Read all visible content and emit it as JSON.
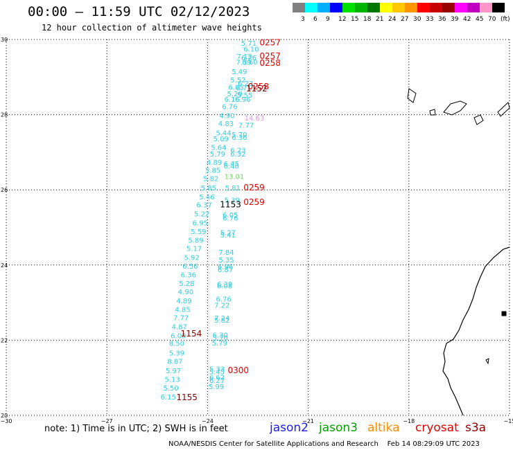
{
  "header": {
    "title": "00:00 – 11:59 UTC 02/12/2023",
    "subtitle": "12 hour collection of altimeter wave heights"
  },
  "color_scale": {
    "labels": [
      "3",
      "6",
      "9",
      "12",
      "15",
      "18",
      "21",
      "24",
      "27",
      "30",
      "33",
      "36",
      "39",
      "42",
      "45",
      "70",
      "(ft)"
    ],
    "colors": [
      "#808080",
      "#00ffff",
      "#00b0ff",
      "#0000ff",
      "#00e000",
      "#00b400",
      "#007800",
      "#ffff00",
      "#ffc800",
      "#ff9600",
      "#ff0000",
      "#c80000",
      "#960000",
      "#ff00ff",
      "#c000c0",
      "#ff96c8",
      "#000000"
    ]
  },
  "axes": {
    "y_ticks": [
      "30",
      "28",
      "26",
      "24",
      "22",
      "20"
    ],
    "x_ticks": [
      "−30",
      "−27",
      "−24",
      "−21",
      "−18",
      "−15"
    ]
  },
  "map": {
    "lon_range": [
      -30,
      -15
    ],
    "lat_range": [
      20,
      30
    ],
    "grid": "dotted",
    "observations": [
      {
        "label": "5.71",
        "lon": -23.0,
        "lat": 29.91,
        "color": "#2ecde0"
      },
      {
        "label": "6.10",
        "lon": -22.93,
        "lat": 29.75,
        "color": "#2ecde0"
      },
      {
        "label": "7.12",
        "lon": -23.13,
        "lat": 29.56,
        "color": "#2ecde0"
      },
      {
        "label": "6.26",
        "lon": -23.0,
        "lat": 29.52,
        "color": "#2ecde0"
      },
      {
        "label": "7.39",
        "lon": -23.15,
        "lat": 29.4,
        "color": "#2ecde0"
      },
      {
        "label": "6.60",
        "lon": -22.97,
        "lat": 29.41,
        "color": "#2ecde0"
      },
      {
        "label": "5.49",
        "lon": -23.28,
        "lat": 29.15,
        "color": "#2ecde0"
      },
      {
        "label": "5.52",
        "lon": -23.32,
        "lat": 28.93,
        "color": "#2ecde0"
      },
      {
        "label": "6.23",
        "lon": -23.1,
        "lat": 28.84,
        "color": "#2ecde0"
      },
      {
        "label": "6.05",
        "lon": -23.38,
        "lat": 28.74,
        "color": "#2ecde0"
      },
      {
        "label": "6.71",
        "lon": -23.15,
        "lat": 28.72,
        "color": "#2ecde0"
      },
      {
        "label": "5.29",
        "lon": -23.42,
        "lat": 28.56,
        "color": "#2ecde0"
      },
      {
        "label": "5.55",
        "lon": -23.12,
        "lat": 28.53,
        "color": "#2ecde0"
      },
      {
        "label": "6.16",
        "lon": -23.5,
        "lat": 28.42,
        "color": "#2ecde0"
      },
      {
        "label": "6.96",
        "lon": -23.18,
        "lat": 28.42,
        "color": "#2ecde0"
      },
      {
        "label": "6.76",
        "lon": -23.57,
        "lat": 28.22,
        "color": "#2ecde0"
      },
      {
        "label": "4.90",
        "lon": -23.65,
        "lat": 27.98,
        "color": "#2ecde0"
      },
      {
        "label": "14.63",
        "lon": -22.9,
        "lat": 27.92,
        "color": "#e88ce8"
      },
      {
        "label": "4.83",
        "lon": -23.68,
        "lat": 27.77,
        "color": "#2ecde0"
      },
      {
        "label": "7.77",
        "lon": -23.08,
        "lat": 27.73,
        "color": "#2ecde0"
      },
      {
        "label": "5.44",
        "lon": -23.75,
        "lat": 27.52,
        "color": "#2ecde0"
      },
      {
        "label": "5.70",
        "lon": -23.28,
        "lat": 27.48,
        "color": "#2ecde0"
      },
      {
        "label": "5.09",
        "lon": -23.83,
        "lat": 27.37,
        "color": "#2ecde0"
      },
      {
        "label": "6.36",
        "lon": -23.28,
        "lat": 27.4,
        "color": "#2ecde0"
      },
      {
        "label": "5.64",
        "lon": -23.9,
        "lat": 27.14,
        "color": "#2ecde0"
      },
      {
        "label": "6.23",
        "lon": -23.32,
        "lat": 27.06,
        "color": "#2ecde0"
      },
      {
        "label": "5.79",
        "lon": -23.93,
        "lat": 26.96,
        "color": "#2ecde0"
      },
      {
        "label": "6.32",
        "lon": -23.32,
        "lat": 26.96,
        "color": "#2ecde0"
      },
      {
        "label": "4.89",
        "lon": -24.03,
        "lat": 26.74,
        "color": "#2ecde0"
      },
      {
        "label": "6.45",
        "lon": -23.52,
        "lat": 26.7,
        "color": "#2ecde0"
      },
      {
        "label": "6.40",
        "lon": -23.52,
        "lat": 26.64,
        "color": "#2ecde0"
      },
      {
        "label": "5.85",
        "lon": -24.07,
        "lat": 26.53,
        "color": "#2ecde0"
      },
      {
        "label": "13.01",
        "lon": -23.5,
        "lat": 26.36,
        "color": "#6cd45a"
      },
      {
        "label": "5.82",
        "lon": -24.13,
        "lat": 26.31,
        "color": "#2ecde0"
      },
      {
        "label": "5.85",
        "lon": -24.2,
        "lat": 26.06,
        "color": "#2ecde0"
      },
      {
        "label": "5.81",
        "lon": -23.48,
        "lat": 26.06,
        "color": "#2ecde0"
      },
      {
        "label": "5.46",
        "lon": -24.25,
        "lat": 25.82,
        "color": "#2ecde0"
      },
      {
        "label": "5.39",
        "lon": -23.5,
        "lat": 25.74,
        "color": "#2ecde0"
      },
      {
        "label": "6.37",
        "lon": -24.33,
        "lat": 25.61,
        "color": "#2ecde0"
      },
      {
        "label": "5.22",
        "lon": -24.4,
        "lat": 25.37,
        "color": "#2ecde0"
      },
      {
        "label": "6.05",
        "lon": -23.55,
        "lat": 25.34,
        "color": "#2ecde0"
      },
      {
        "label": "6.76",
        "lon": -23.55,
        "lat": 25.26,
        "color": "#2ecde0"
      },
      {
        "label": "6.95",
        "lon": -24.45,
        "lat": 25.13,
        "color": "#2ecde0"
      },
      {
        "label": "5.59",
        "lon": -24.5,
        "lat": 24.9,
        "color": "#2ecde0"
      },
      {
        "label": "5.27",
        "lon": -23.62,
        "lat": 24.87,
        "color": "#2ecde0"
      },
      {
        "label": "5.41",
        "lon": -23.62,
        "lat": 24.81,
        "color": "#2ecde0"
      },
      {
        "label": "5.89",
        "lon": -24.58,
        "lat": 24.67,
        "color": "#2ecde0"
      },
      {
        "label": "5.17",
        "lon": -24.63,
        "lat": 24.45,
        "color": "#2ecde0"
      },
      {
        "label": "7.84",
        "lon": -23.67,
        "lat": 24.35,
        "color": "#2ecde0"
      },
      {
        "label": "5.92",
        "lon": -24.7,
        "lat": 24.21,
        "color": "#2ecde0"
      },
      {
        "label": "5.35",
        "lon": -23.67,
        "lat": 24.14,
        "color": "#2ecde0"
      },
      {
        "label": "6.56",
        "lon": -24.75,
        "lat": 23.98,
        "color": "#2ecde0"
      },
      {
        "label": "6.96",
        "lon": -23.7,
        "lat": 23.97,
        "color": "#2ecde0"
      },
      {
        "label": "6.87",
        "lon": -23.7,
        "lat": 23.89,
        "color": "#2ecde0"
      },
      {
        "label": "6.36",
        "lon": -24.8,
        "lat": 23.75,
        "color": "#2ecde0"
      },
      {
        "label": "5.28",
        "lon": -24.85,
        "lat": 23.52,
        "color": "#2ecde0"
      },
      {
        "label": "6.39",
        "lon": -23.72,
        "lat": 23.5,
        "color": "#2ecde0"
      },
      {
        "label": "6.08",
        "lon": -23.72,
        "lat": 23.45,
        "color": "#2ecde0"
      },
      {
        "label": "4.90",
        "lon": -24.88,
        "lat": 23.3,
        "color": "#2ecde0"
      },
      {
        "label": "4.89",
        "lon": -24.93,
        "lat": 23.06,
        "color": "#2ecde0"
      },
      {
        "label": "6.76",
        "lon": -23.75,
        "lat": 23.1,
        "color": "#2ecde0"
      },
      {
        "label": "7.22",
        "lon": -23.8,
        "lat": 22.94,
        "color": "#2ecde0"
      },
      {
        "label": "4.85",
        "lon": -24.97,
        "lat": 22.83,
        "color": "#2ecde0"
      },
      {
        "label": "7.77",
        "lon": -25.02,
        "lat": 22.61,
        "color": "#2ecde0"
      },
      {
        "label": "7.24",
        "lon": -23.8,
        "lat": 22.6,
        "color": "#2ecde0"
      },
      {
        "label": "5.82",
        "lon": -23.8,
        "lat": 22.54,
        "color": "#2ecde0"
      },
      {
        "label": "4.87",
        "lon": -25.07,
        "lat": 22.37,
        "color": "#2ecde0"
      },
      {
        "label": "6.00",
        "lon": -25.1,
        "lat": 22.13,
        "color": "#2ecde0"
      },
      {
        "label": "6.30",
        "lon": -23.85,
        "lat": 22.15,
        "color": "#2ecde0"
      },
      {
        "label": "5.70",
        "lon": -23.85,
        "lat": 22.07,
        "color": "#2ecde0"
      },
      {
        "label": "8.50",
        "lon": -25.15,
        "lat": 21.92,
        "color": "#2ecde0"
      },
      {
        "label": "5.79",
        "lon": -23.87,
        "lat": 21.93,
        "color": "#2ecde0"
      },
      {
        "label": "5.39",
        "lon": -25.15,
        "lat": 21.67,
        "color": "#2ecde0"
      },
      {
        "label": "8.87",
        "lon": -25.2,
        "lat": 21.45,
        "color": "#2ecde0"
      },
      {
        "label": "5.97",
        "lon": -25.25,
        "lat": 21.2,
        "color": "#2ecde0"
      },
      {
        "label": "5.33",
        "lon": -23.95,
        "lat": 21.24,
        "color": "#2ecde0"
      },
      {
        "label": "5.45",
        "lon": -23.95,
        "lat": 21.17,
        "color": "#2ecde0"
      },
      {
        "label": "5.13",
        "lon": -25.28,
        "lat": 20.97,
        "color": "#2ecde0"
      },
      {
        "label": "6.62",
        "lon": -23.95,
        "lat": 21.02,
        "color": "#2ecde0"
      },
      {
        "label": "6.27",
        "lon": -23.95,
        "lat": 20.94,
        "color": "#2ecde0"
      },
      {
        "label": "5.50",
        "lon": -25.32,
        "lat": 20.74,
        "color": "#2ecde0"
      },
      {
        "label": "5.99",
        "lon": -23.97,
        "lat": 20.77,
        "color": "#2ecde0"
      },
      {
        "label": "6.15",
        "lon": -25.4,
        "lat": 20.5,
        "color": "#2ecde0"
      }
    ],
    "time_labels": [
      {
        "label": "0257",
        "lon": -22.45,
        "lat": 29.92,
        "color": "#e00000"
      },
      {
        "label": "0257",
        "lon": -22.45,
        "lat": 29.56,
        "color": "#e00000"
      },
      {
        "label": "0258",
        "lon": -22.45,
        "lat": 29.37,
        "color": "#e00000"
      },
      {
        "label": "0258",
        "lon": -22.8,
        "lat": 28.75,
        "color": "#e00000"
      },
      {
        "label": "1152",
        "lon": -22.85,
        "lat": 28.69,
        "color": "#800000"
      },
      {
        "label": "0259",
        "lon": -22.93,
        "lat": 26.06,
        "color": "#e00000"
      },
      {
        "label": "1153",
        "lon": -23.63,
        "lat": 25.61,
        "color": "#000000"
      },
      {
        "label": "0259",
        "lon": -22.93,
        "lat": 25.67,
        "color": "#e00000"
      },
      {
        "label": "1154",
        "lon": -24.8,
        "lat": 22.17,
        "color": "#800000"
      },
      {
        "label": "0300",
        "lon": -23.4,
        "lat": 21.2,
        "color": "#e00000"
      },
      {
        "label": "1155",
        "lon": -24.93,
        "lat": 20.48,
        "color": "#800000"
      }
    ]
  },
  "footer": {
    "note": "note: 1) Time is in UTC; 2) SWH is in feet",
    "satellites": [
      {
        "name": "jason2",
        "color": "#1a1aff"
      },
      {
        "name": "jason3",
        "color": "#00a000"
      },
      {
        "name": "altika",
        "color": "#ff8c00"
      },
      {
        "name": "cryosat",
        "color": "#e00000"
      },
      {
        "name": "s3a",
        "color": "#900000"
      }
    ],
    "credit": "NOAA/NESDIS Center for Satellite Applications and Research    Feb 14 08:29:09 UTC 2023"
  }
}
